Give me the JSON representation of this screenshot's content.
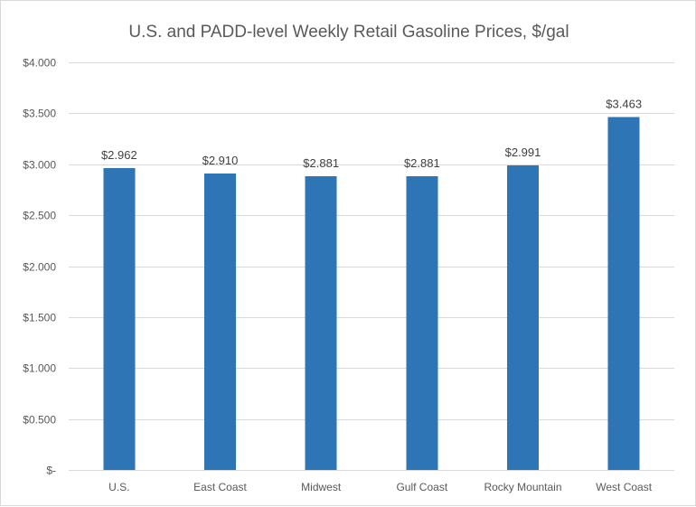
{
  "chart_data": {
    "type": "bar",
    "title": "U.S. and PADD-level Weekly Retail Gasoline Prices, $/gal",
    "xlabel": "",
    "ylabel": "",
    "categories": [
      "U.S.",
      "East Coast",
      "Midwest",
      "Gulf Coast",
      "Rocky Mountain",
      "West Coast"
    ],
    "values": [
      2.962,
      2.91,
      2.881,
      2.881,
      2.991,
      3.463
    ],
    "data_labels": [
      "$2.962",
      "$2.910",
      "$2.881",
      "$2.881",
      "$2.991",
      "$3.463"
    ],
    "ylim": [
      0,
      4
    ],
    "y_ticks": [
      0,
      0.5,
      1.0,
      1.5,
      2.0,
      2.5,
      3.0,
      3.5,
      4.0
    ],
    "y_tick_labels": [
      "$-",
      "$0.500",
      "$1.000",
      "$1.500",
      "$2.000",
      "$2.500",
      "$3.000",
      "$3.500",
      "$4.000"
    ],
    "grid": true,
    "legend": "none",
    "bar_color": "#2e75b6"
  }
}
